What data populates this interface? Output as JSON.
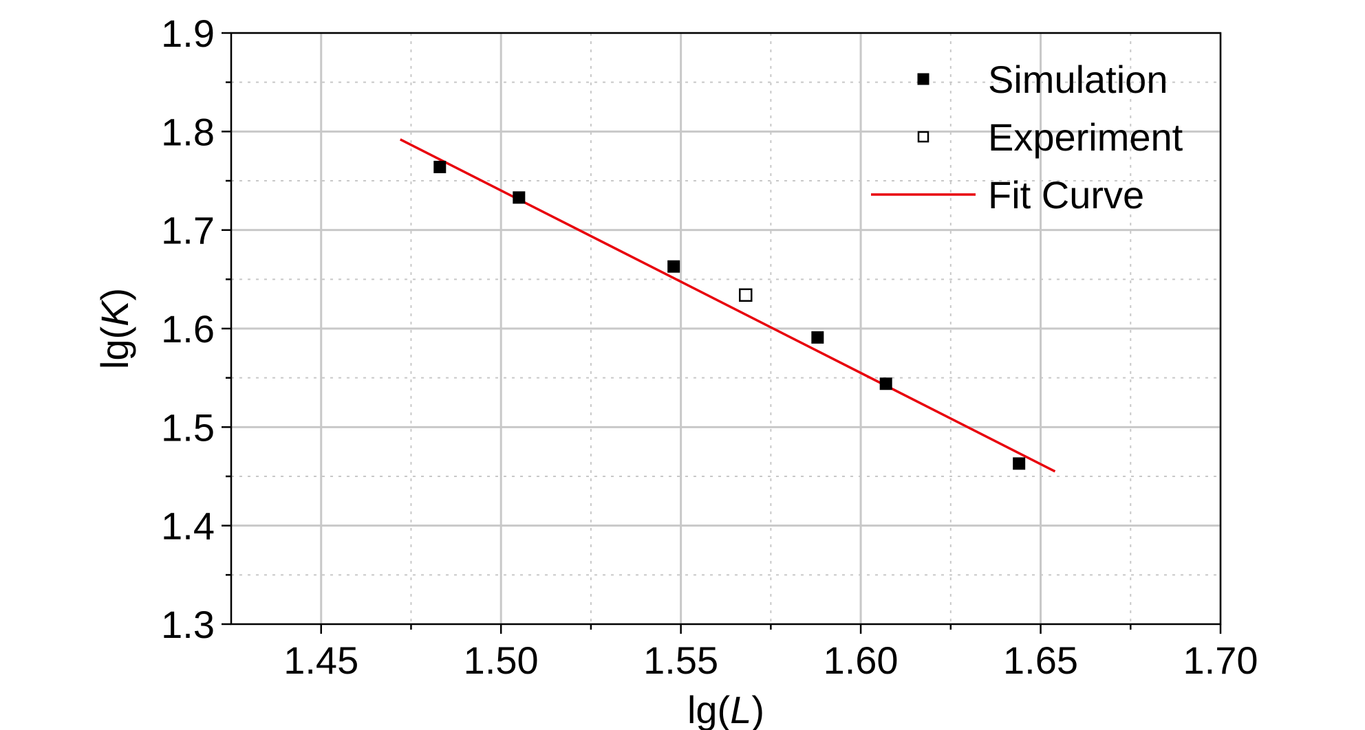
{
  "chart_data": {
    "type": "scatter",
    "title": "",
    "xlabel": "lg(L)",
    "ylabel": "lg(K)",
    "xlabel_parts": [
      "lg(",
      "L",
      ")"
    ],
    "ylabel_parts": [
      "lg(",
      "K",
      ")"
    ],
    "xlim": [
      1.425,
      1.7
    ],
    "ylim": [
      1.3,
      1.9
    ],
    "x_ticks": [
      1.45,
      1.5,
      1.55,
      1.6,
      1.65,
      1.7
    ],
    "x_tick_labels": [
      "1.45",
      "1.50",
      "1.55",
      "1.60",
      "1.65",
      "1.70"
    ],
    "y_ticks": [
      1.3,
      1.4,
      1.5,
      1.6,
      1.7,
      1.8,
      1.9
    ],
    "y_tick_labels": [
      "1.3",
      "1.4",
      "1.5",
      "1.6",
      "1.7",
      "1.8",
      "1.9"
    ],
    "grid": true,
    "legend_position": "top-right",
    "series": [
      {
        "name": "Simulation",
        "marker": "filled-square",
        "color": "#000000",
        "points": [
          {
            "x": 1.483,
            "y": 1.764
          },
          {
            "x": 1.505,
            "y": 1.733
          },
          {
            "x": 1.548,
            "y": 1.663
          },
          {
            "x": 1.588,
            "y": 1.591
          },
          {
            "x": 1.607,
            "y": 1.544
          },
          {
            "x": 1.644,
            "y": 1.463
          }
        ]
      },
      {
        "name": "Experiment",
        "marker": "open-square",
        "color": "#000000",
        "points": [
          {
            "x": 1.568,
            "y": 1.634
          }
        ]
      },
      {
        "name": "Fit Curve",
        "marker": "line",
        "color": "#e8000b",
        "points": [
          {
            "x": 1.472,
            "y": 1.792
          },
          {
            "x": 1.654,
            "y": 1.455
          }
        ]
      }
    ]
  }
}
